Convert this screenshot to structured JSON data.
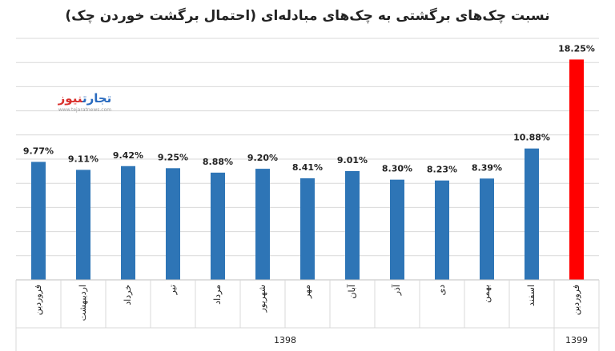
{
  "chart_data": {
    "type": "bar",
    "title": "نسبت چک‌های برگشتی به چک‌های مبادله‌ای (احتمال برگشت خوردن چک)",
    "categories": [
      "فروردین",
      "اردیبهشت",
      "خرداد",
      "تیر",
      "مرداد",
      "شهریور",
      "مهر",
      "آبان",
      "آذر",
      "دی",
      "بهمن",
      "اسفند",
      "فروردین"
    ],
    "values": [
      9.77,
      9.11,
      9.42,
      9.25,
      8.88,
      9.2,
      8.41,
      9.01,
      8.3,
      8.23,
      8.39,
      10.88,
      18.25
    ],
    "value_labels": [
      "9.77%",
      "9.11%",
      "9.42%",
      "9.25%",
      "8.88%",
      "9.20%",
      "8.41%",
      "9.01%",
      "8.30%",
      "8.23%",
      "8.39%",
      "10.88%",
      "18.25%"
    ],
    "groups": [
      {
        "label": "1398",
        "count": 12
      },
      {
        "label": "1399",
        "count": 1
      }
    ],
    "colors": {
      "default": "#2e75b6",
      "highlight": "#ff0000"
    },
    "highlight_index": 12,
    "ylim": [
      0,
      20
    ],
    "grid": true,
    "xlabel": "",
    "ylabel": ""
  },
  "logo": {
    "text_main": "تجارت",
    "text_accent": "نیوز",
    "url": "www.tejaratnews.com"
  }
}
